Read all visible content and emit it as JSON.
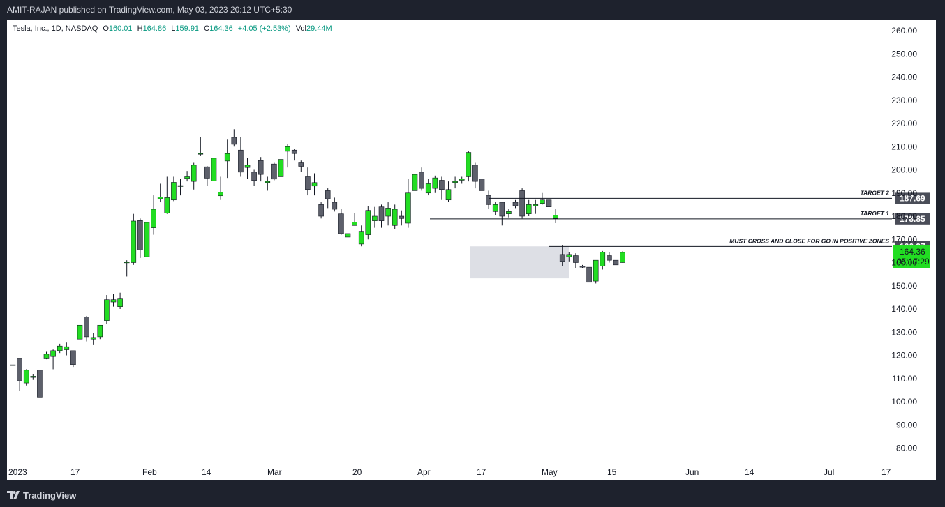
{
  "header": {
    "publisher": "AMIT-RAJAN published on TradingView.com, May 03, 2023 20:12 UTC+5:30"
  },
  "legend": {
    "symbol": "Tesla, Inc., 1D, NASDAQ",
    "o_label": "O",
    "o": "160.01",
    "h_label": "H",
    "h": "164.86",
    "l_label": "L",
    "l": "159.91",
    "c_label": "C",
    "c": "164.36",
    "change": "+4.05 (+2.53%)",
    "vol_label": "Vol",
    "vol": "29.44M"
  },
  "footer": {
    "brand": "TradingView"
  },
  "colors": {
    "up": "#22dd22",
    "down": "#5d606b",
    "frame": "#1e222d",
    "grid_text": "#131722",
    "zone": "#d1d4dc",
    "tag": "#4a4d58"
  },
  "chart_data": {
    "type": "candlestick",
    "title": "",
    "ylim": [
      75,
      265
    ],
    "y_ticks": [
      "80.00",
      "90.00",
      "100.00",
      "110.00",
      "120.00",
      "130.00",
      "140.00",
      "150.00",
      "160.00",
      "170.00",
      "180.00",
      "190.00",
      "200.00",
      "210.00",
      "220.00",
      "230.00",
      "240.00",
      "250.00",
      "260.00"
    ],
    "x_ticks": [
      "2023",
      "17",
      "Feb",
      "14",
      "Mar",
      "20",
      "Apr",
      "17",
      "May",
      "15",
      "Jun",
      "14",
      "Jul",
      "17"
    ],
    "ohlc": [
      [
        115.9,
        115.9,
        124.5,
        121.0
      ],
      [
        118.5,
        109.0,
        118.5,
        104.6
      ],
      [
        108.1,
        113.6,
        114.0,
        107.0
      ],
      [
        110.5,
        111.0,
        111.8,
        109.4
      ],
      [
        113.6,
        102.0,
        102.0,
        112.8
      ],
      [
        118.5,
        120.5,
        121.5,
        118.3
      ],
      [
        119.5,
        122.0,
        122.5,
        114.0
      ],
      [
        122.0,
        124.0,
        125.0,
        121.0
      ],
      [
        122.4,
        123.7,
        125.5,
        120.0
      ],
      [
        122.0,
        116.0,
        122.0,
        115.0
      ],
      [
        127.0,
        133.0,
        134.0,
        125.0
      ],
      [
        136.6,
        128.0,
        137.0,
        126.0
      ],
      [
        127.0,
        127.7,
        129.6,
        124.7
      ],
      [
        128.0,
        133.0,
        133.0,
        127.0
      ],
      [
        135.0,
        144.0,
        146.0,
        133.6
      ],
      [
        143.0,
        144.0,
        146.5,
        141.0
      ],
      [
        141.0,
        144.3,
        147.0,
        140.0
      ],
      [
        160.1,
        160.2,
        161.0,
        154.0
      ],
      [
        160.0,
        177.9,
        181.0,
        159.0
      ],
      [
        178.1,
        165.5,
        179.0,
        162.0
      ],
      [
        162.5,
        177.3,
        178.0,
        158.0
      ],
      [
        175.0,
        183.0,
        189.0,
        172.0
      ],
      [
        187.5,
        188.3,
        194.0,
        186.0
      ],
      [
        181.4,
        188.0,
        197.0,
        181.0
      ],
      [
        187.0,
        194.6,
        197.0,
        186.5
      ],
      [
        192.8,
        193.2,
        196.2,
        189.0
      ],
      [
        196.3,
        197.0,
        199.5,
        195.0
      ],
      [
        195.0,
        202.0,
        203.0,
        191.5
      ],
      [
        207.0,
        207.0,
        214.0,
        206.0
      ],
      [
        201.3,
        196.4,
        201.6,
        193.0
      ],
      [
        195.2,
        205.0,
        206.5,
        192.0
      ],
      [
        188.8,
        190.3,
        197.0,
        187.0
      ],
      [
        203.8,
        207.0,
        213.0,
        196.5
      ],
      [
        214.0,
        211.0,
        217.5,
        210.0
      ],
      [
        208.5,
        199.0,
        214.0,
        197.0
      ],
      [
        201.0,
        202.0,
        205.0,
        196.0
      ],
      [
        199.0,
        195.4,
        200.0,
        193.0
      ],
      [
        204.0,
        198.0,
        205.5,
        195.0
      ],
      [
        194.5,
        195.0,
        197.0,
        191.0
      ],
      [
        202.5,
        196.0,
        203.0,
        195.5
      ],
      [
        197.0,
        204.5,
        205.0,
        195.5
      ],
      [
        208.0,
        210.0,
        211.0,
        201.0
      ],
      [
        208.5,
        207.0,
        209.0,
        204.0
      ],
      [
        203.0,
        201.5,
        204.0,
        199.0
      ],
      [
        197.0,
        191.5,
        201.0,
        189.0
      ],
      [
        193.0,
        194.5,
        198.5,
        189.0
      ],
      [
        185.0,
        180.0,
        186.0,
        179.0
      ],
      [
        191.0,
        187.5,
        192.0,
        183.5
      ],
      [
        186.0,
        183.0,
        188.0,
        182.0
      ],
      [
        181.0,
        172.5,
        183.0,
        172.0
      ],
      [
        171.0,
        172.5,
        174.0,
        167.0
      ],
      [
        176.0,
        177.5,
        181.5,
        176.0
      ],
      [
        168.0,
        173.5,
        176.0,
        167.0
      ],
      [
        172.0,
        182.5,
        184.5,
        170.0
      ],
      [
        178.0,
        180.0,
        184.0,
        175.0
      ],
      [
        184.0,
        178.0,
        185.0,
        175.0
      ],
      [
        180.0,
        183.5,
        186.0,
        176.0
      ],
      [
        176.0,
        183.0,
        185.0,
        174.5
      ],
      [
        180.0,
        179.0,
        182.5,
        176.0
      ],
      [
        177.0,
        190.0,
        196.0,
        175.0
      ],
      [
        191.0,
        198.0,
        200.0,
        187.0
      ],
      [
        199.0,
        192.0,
        201.0,
        191.0
      ],
      [
        190.0,
        194.0,
        196.0,
        189.0
      ],
      [
        192.0,
        196.5,
        197.5,
        190.0
      ],
      [
        195.5,
        191.5,
        197.0,
        187.0
      ],
      [
        187.0,
        191.5,
        195.0,
        186.0
      ],
      [
        194.5,
        195.0,
        197.0,
        192.0
      ],
      [
        195.5,
        196.0,
        197.0,
        194.0
      ],
      [
        197.0,
        207.5,
        208.0,
        195.0
      ],
      [
        202.0,
        195.0,
        203.0,
        192.0
      ],
      [
        196.0,
        191.0,
        198.0,
        189.0
      ],
      [
        189.0,
        185.0,
        191.0,
        183.0
      ],
      [
        182.0,
        185.0,
        186.0,
        180.5
      ],
      [
        186.0,
        180.0,
        186.0,
        176.0
      ],
      [
        181.0,
        182.0,
        183.0,
        179.5
      ],
      [
        186.0,
        184.5,
        187.0,
        183.5
      ],
      [
        191.0,
        180.0,
        192.0,
        179.0
      ],
      [
        181.0,
        185.0,
        187.0,
        180.0
      ],
      [
        184.5,
        185.0,
        187.0,
        181.0
      ],
      [
        185.5,
        187.0,
        190.0,
        185.0
      ],
      [
        187.0,
        184.0,
        187.5,
        183.0
      ],
      [
        179.0,
        180.5,
        183.0,
        177.0
      ],
      [
        163.5,
        160.5,
        167.5,
        158.5
      ],
      [
        162.5,
        163.5,
        164.5,
        160.5
      ],
      [
        163.0,
        160.0,
        164.0,
        157.5
      ],
      [
        158.5,
        158.0,
        159.0,
        157.5
      ],
      [
        158.0,
        151.5,
        158.0,
        151.5
      ],
      [
        152.0,
        161.0,
        161.0,
        151.0
      ],
      [
        158.5,
        164.5,
        165.0,
        157.0
      ],
      [
        163.0,
        161.0,
        164.5,
        160.0
      ],
      [
        161.0,
        159.0,
        168.0,
        159.0
      ],
      [
        160.0,
        164.4,
        164.9,
        159.9
      ]
    ],
    "levels": [
      {
        "value": 187.69,
        "price_tag": "187.69",
        "label": "TARGET 2"
      },
      {
        "value": 178.85,
        "price_tag": "178.85",
        "label": "TARGET 1"
      },
      {
        "value": 166.97,
        "price_tag": "166.97",
        "label": "MUST CROSS AND CLOSE FOR GO IN POSITIVE ZONES"
      }
    ],
    "current_price": {
      "value": 164.36,
      "price_tag": "164.36",
      "countdown": "05:17:29"
    },
    "zone": {
      "top": 167,
      "bottom": 153.2
    }
  }
}
